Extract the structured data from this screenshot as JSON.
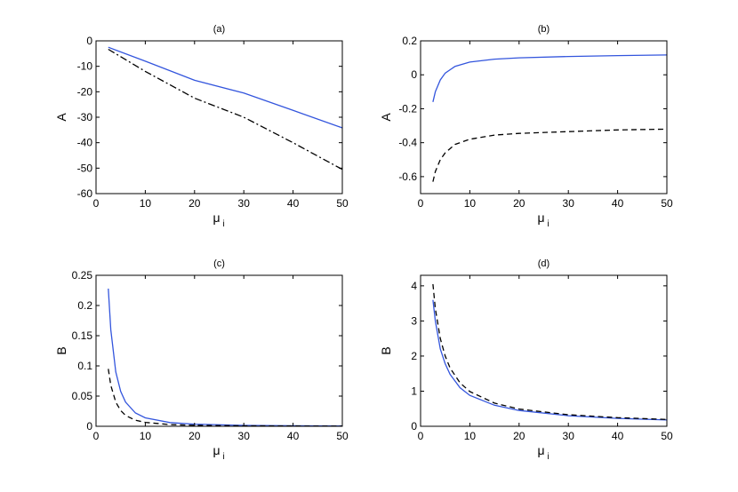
{
  "chart_data": [
    {
      "type": "line",
      "title": "(a)",
      "xlabel": "μ",
      "xlabel_sub": "i",
      "ylabel": "A",
      "xlim": [
        0,
        50
      ],
      "ylim": [
        -60,
        0
      ],
      "xticks": [
        0,
        10,
        20,
        30,
        40,
        50
      ],
      "yticks": [
        -60,
        -50,
        -40,
        -30,
        -20,
        -10,
        0
      ],
      "grid": false,
      "x": [
        2.5,
        10,
        20,
        30,
        40,
        50
      ],
      "series": [
        {
          "values": [
            -2.5,
            -8.0,
            -15.5,
            -20.5,
            -27.3,
            -34.2
          ],
          "color": "#3355dd",
          "style": "solid"
        },
        {
          "values": [
            -3.3,
            -12.0,
            -22.5,
            -30.0,
            -40.0,
            -50.5
          ],
          "color": "#000000",
          "style": "dashdot"
        }
      ]
    },
    {
      "type": "line",
      "title": "(b)",
      "xlabel": "μ",
      "xlabel_sub": "i",
      "ylabel": "A",
      "xlim": [
        0,
        50
      ],
      "ylim": [
        -0.7,
        0.2
      ],
      "xticks": [
        0,
        10,
        20,
        30,
        40,
        50
      ],
      "yticks": [
        -0.6,
        -0.4,
        -0.2,
        0,
        0.2
      ],
      "ytick_labels": [
        "-0.6",
        "-0.4",
        "-0.2",
        "0",
        "0.2"
      ],
      "grid": false,
      "x": [
        2.5,
        3,
        4,
        5,
        7,
        10,
        15,
        20,
        30,
        40,
        50
      ],
      "series": [
        {
          "values": [
            -0.16,
            -0.1,
            -0.03,
            0.01,
            0.05,
            0.075,
            0.092,
            0.1,
            0.108,
            0.113,
            0.117
          ],
          "color": "#3355dd",
          "style": "solid"
        },
        {
          "values": [
            -0.63,
            -0.57,
            -0.5,
            -0.46,
            -0.41,
            -0.38,
            -0.355,
            -0.345,
            -0.335,
            -0.325,
            -0.32
          ],
          "color": "#000000",
          "style": "dashed"
        }
      ]
    },
    {
      "type": "line",
      "title": "(c)",
      "xlabel": "μ",
      "xlabel_sub": "i",
      "ylabel": "B",
      "xlim": [
        0,
        50
      ],
      "ylim": [
        0,
        0.25
      ],
      "xticks": [
        0,
        10,
        20,
        30,
        40,
        50
      ],
      "yticks": [
        0,
        0.05,
        0.1,
        0.15,
        0.2,
        0.25
      ],
      "ytick_labels": [
        "0",
        "0.05",
        "0.1",
        "0.15",
        "0.2",
        "0.25"
      ],
      "grid": false,
      "x": [
        2.5,
        3,
        4,
        5,
        6,
        8,
        10,
        15,
        20,
        30,
        40,
        50
      ],
      "series": [
        {
          "values": [
            0.228,
            0.16,
            0.09,
            0.058,
            0.04,
            0.022,
            0.014,
            0.0062,
            0.0035,
            0.0015,
            0.0009,
            0.0006
          ],
          "color": "#3355dd",
          "style": "solid"
        },
        {
          "values": [
            0.095,
            0.068,
            0.04,
            0.026,
            0.018,
            0.01,
            0.0064,
            0.0028,
            0.0016,
            0.0007,
            0.0004,
            0.0003
          ],
          "color": "#000000",
          "style": "dashed"
        }
      ]
    },
    {
      "type": "line",
      "title": "(d)",
      "xlabel": "μ",
      "xlabel_sub": "i",
      "ylabel": "B",
      "xlim": [
        0,
        50
      ],
      "ylim": [
        0,
        4.3
      ],
      "xticks": [
        0,
        10,
        20,
        30,
        40,
        50
      ],
      "yticks": [
        0,
        1,
        2,
        3,
        4
      ],
      "grid": false,
      "x": [
        2.5,
        3,
        4,
        5,
        6,
        8,
        10,
        15,
        20,
        30,
        40,
        50
      ],
      "series": [
        {
          "values": [
            3.6,
            3.0,
            2.2,
            1.78,
            1.48,
            1.1,
            0.88,
            0.6,
            0.45,
            0.3,
            0.225,
            0.18
          ],
          "color": "#3355dd",
          "style": "solid"
        },
        {
          "values": [
            4.05,
            3.35,
            2.5,
            2.0,
            1.66,
            1.24,
            0.99,
            0.66,
            0.49,
            0.33,
            0.245,
            0.195
          ],
          "color": "#000000",
          "style": "dashed"
        }
      ]
    }
  ]
}
